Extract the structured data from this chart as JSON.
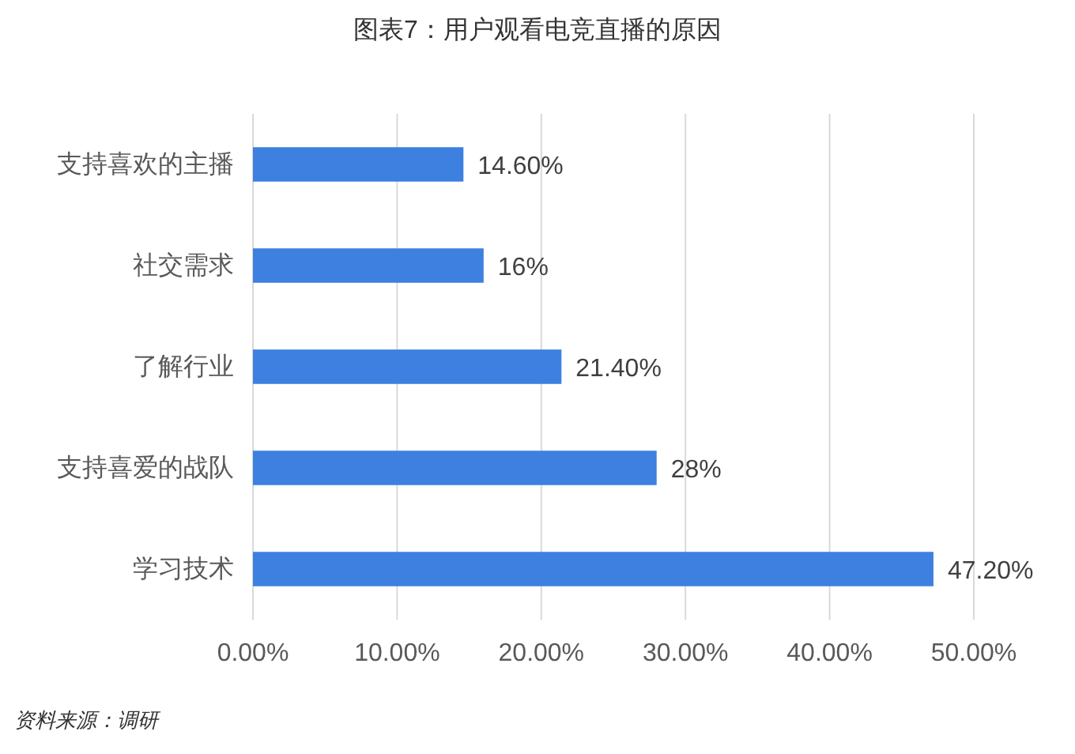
{
  "chart_data": {
    "type": "bar",
    "orientation": "horizontal",
    "title": "图表7：用户观看电竞直播的原因",
    "categories": [
      "支持喜欢的主播",
      "社交需求",
      "了解行业",
      "支持喜爱的战队",
      "学习技术"
    ],
    "values": [
      14.6,
      16,
      21.4,
      28,
      47.2
    ],
    "value_labels": [
      "14.60%",
      "16%",
      "21.40%",
      "28%",
      "47.20%"
    ],
    "color": "#3d80e0",
    "xlim": [
      0,
      50
    ],
    "xticks": [
      {
        "value": 0,
        "label": "0.00%"
      },
      {
        "value": 10,
        "label": "10.00%"
      },
      {
        "value": 20,
        "label": "20.00%"
      },
      {
        "value": 30,
        "label": "30.00%"
      },
      {
        "value": 40,
        "label": "40.00%"
      },
      {
        "value": 50,
        "label": "50.00%"
      }
    ],
    "grid": "x",
    "annotations": [
      "资料来源：调研"
    ]
  }
}
